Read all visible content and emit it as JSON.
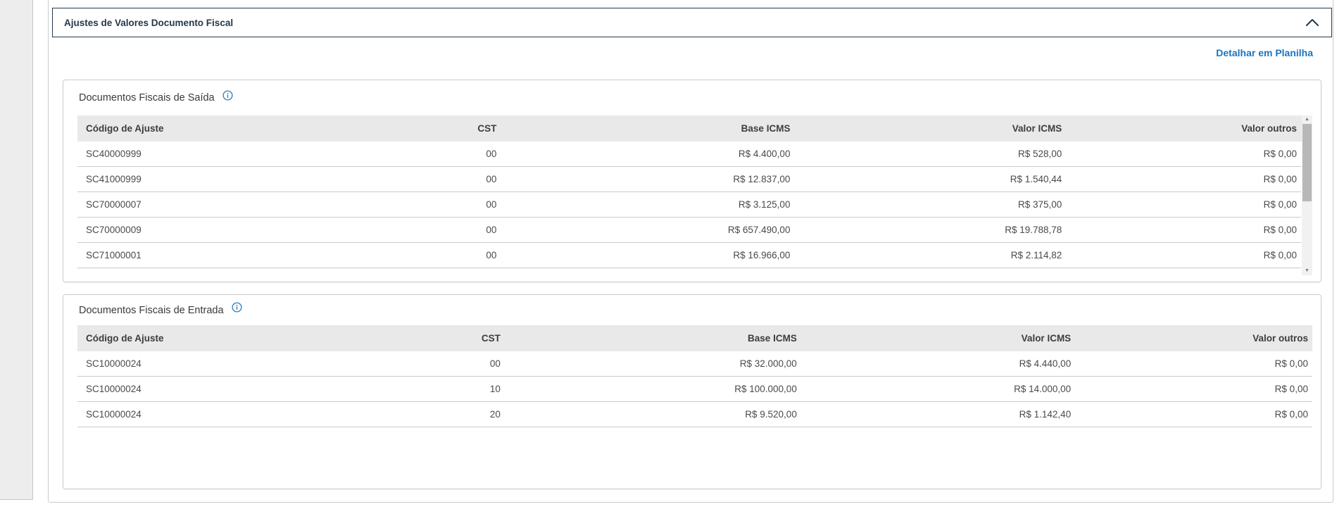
{
  "accordion": {
    "title": "Ajustes de Valores Documento Fiscal"
  },
  "toolbar": {
    "detail_link": "Detalhar em Planilha"
  },
  "tables": [
    {
      "title": "Documentos Fiscais de Saída",
      "columns": [
        "Código de Ajuste",
        "CST",
        "Base ICMS",
        "Valor ICMS",
        "Valor outros"
      ],
      "rows": [
        {
          "code": "SC40000999",
          "cst": "00",
          "base_icms": "R$ 4.400,00",
          "valor_icms": "R$ 528,00",
          "valor_outros": "R$ 0,00"
        },
        {
          "code": "SC41000999",
          "cst": "00",
          "base_icms": "R$ 12.837,00",
          "valor_icms": "R$ 1.540,44",
          "valor_outros": "R$ 0,00"
        },
        {
          "code": "SC70000007",
          "cst": "00",
          "base_icms": "R$ 3.125,00",
          "valor_icms": "R$ 375,00",
          "valor_outros": "R$ 0,00"
        },
        {
          "code": "SC70000009",
          "cst": "00",
          "base_icms": "R$ 657.490,00",
          "valor_icms": "R$ 19.788,78",
          "valor_outros": "R$ 0,00"
        },
        {
          "code": "SC71000001",
          "cst": "00",
          "base_icms": "R$ 16.966,00",
          "valor_icms": "R$ 2.114,82",
          "valor_outros": "R$ 0,00"
        }
      ],
      "has_scrollbar": true
    },
    {
      "title": "Documentos Fiscais de Entrada",
      "columns": [
        "Código de Ajuste",
        "CST",
        "Base ICMS",
        "Valor ICMS",
        "Valor outros"
      ],
      "rows": [
        {
          "code": "SC10000024",
          "cst": "00",
          "base_icms": "R$ 32.000,00",
          "valor_icms": "R$ 4.440,00",
          "valor_outros": "R$ 0,00"
        },
        {
          "code": "SC10000024",
          "cst": "10",
          "base_icms": "R$ 100.000,00",
          "valor_icms": "R$ 14.000,00",
          "valor_outros": "R$ 0,00"
        },
        {
          "code": "SC10000024",
          "cst": "20",
          "base_icms": "R$ 9.520,00",
          "valor_icms": "R$ 1.142,40",
          "valor_outros": "R$ 0,00"
        }
      ],
      "has_scrollbar": false
    }
  ],
  "icons": {
    "collapse": "chevron-up-icon",
    "section_info": "info-icon",
    "scroll_up_glyph": "▲",
    "scroll_down_glyph": "▼"
  },
  "colors": {
    "accent_blue": "#1b75c0",
    "header_navy": "#24384a",
    "table_header_bg": "#e9e9e9"
  }
}
